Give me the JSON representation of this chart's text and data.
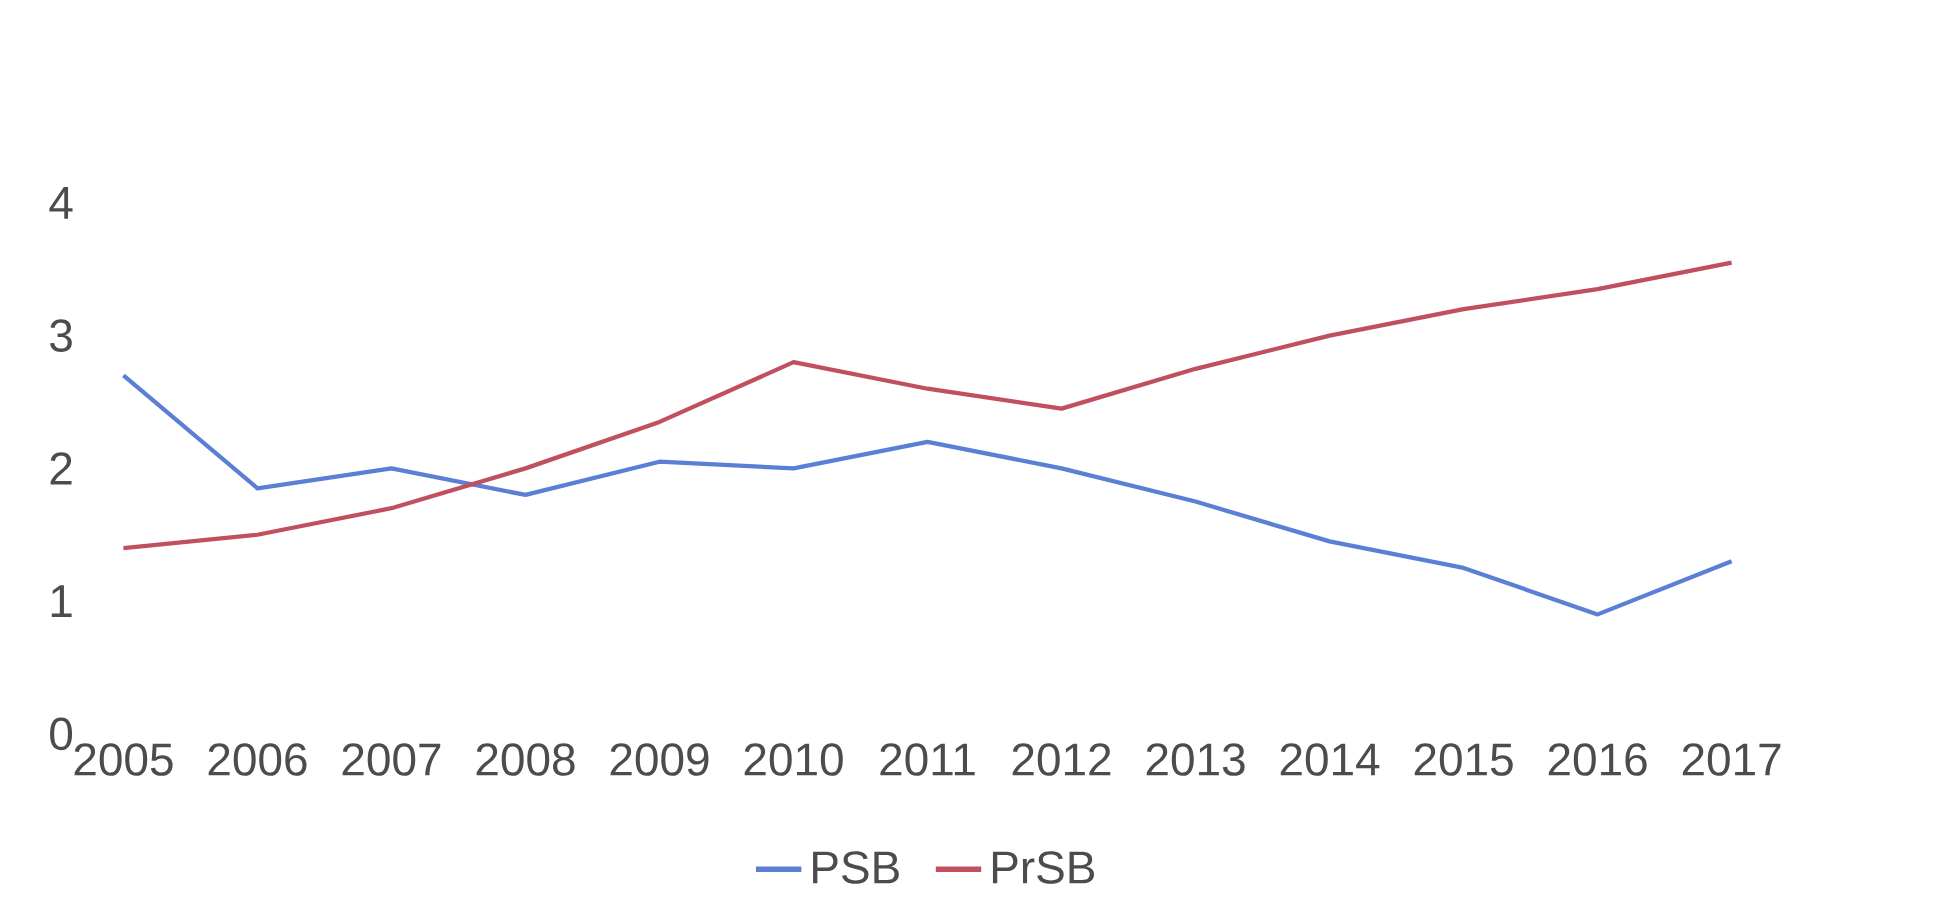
{
  "chart_data": {
    "type": "line",
    "categories": [
      "2005",
      "2006",
      "2007",
      "2008",
      "2009",
      "2010",
      "2011",
      "2012",
      "2013",
      "2014",
      "2015",
      "2016",
      "2017"
    ],
    "series": [
      {
        "name": "PSB",
        "color": "#5b7fd6",
        "values": [
          2.7,
          1.85,
          2.0,
          1.8,
          2.05,
          2.0,
          2.2,
          2.0,
          1.75,
          1.45,
          1.25,
          0.9,
          1.3
        ]
      },
      {
        "name": "PrSB",
        "color": "#c0505f",
        "values": [
          1.4,
          1.5,
          1.7,
          2.0,
          2.35,
          2.8,
          2.6,
          2.45,
          2.75,
          3.0,
          3.2,
          3.35,
          3.55
        ]
      }
    ],
    "ylim": [
      0,
      4
    ],
    "yticks": [
      0,
      1,
      2,
      3,
      4
    ],
    "grid": false,
    "legend": "bottom",
    "line_style": "solid"
  }
}
